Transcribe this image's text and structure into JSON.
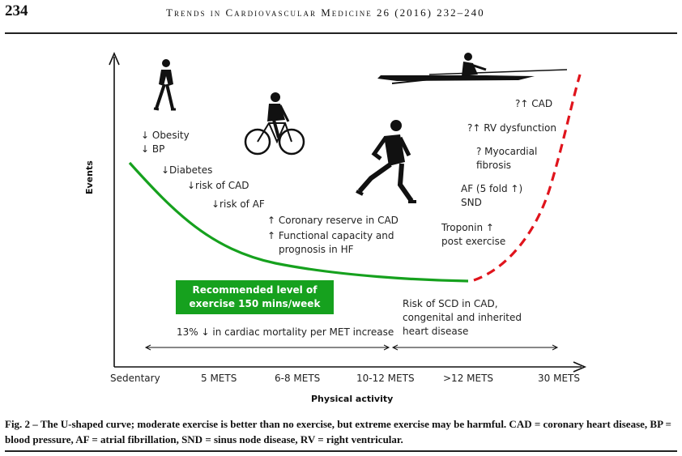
{
  "header": {
    "page_number": "234",
    "running_head": "Trends in Cardiovascular Medicine 26 (2016) 232–240"
  },
  "figure": {
    "y_axis_label": "Events",
    "x_axis_label": "Physical activity",
    "x_ticks": [
      "Sedentary",
      "5 METS",
      "6-8 METS",
      "10-12 METS",
      ">12 METS",
      "30 METS"
    ],
    "annotations": {
      "obesity": "↓ Obesity",
      "bp": "↓ BP",
      "diabetes": "↓Diabetes",
      "risk_cad": "↓risk of CAD",
      "risk_af": "↓risk of AF",
      "coronary_reserve": "↑ Coronary reserve in CAD",
      "functional_1": "↑ Functional capacity and",
      "functional_2": "prognosis in HF",
      "cad": "?↑ CAD",
      "rv_dysfunction": "?↑ RV dysfunction",
      "myocardial_1": "? Myocardial",
      "myocardial_2": "fibrosis",
      "af_1": "AF (5 fold ↑)",
      "af_2": "SND",
      "troponin_1": "Troponin ↑",
      "troponin_2": "post exercise",
      "scd_1": "Risk of SCD in CAD,",
      "scd_2": "congenital and inherited",
      "scd_3": "heart disease",
      "mortality": "13% ↓ in cardiac mortality per MET increase"
    },
    "recommended_box": {
      "line1": "Recommended level of",
      "line2": "exercise 150 mins/week",
      "color": "#16a11e"
    },
    "curve_colors": {
      "beneficial": "#16a11e",
      "harmful": "#e0141c"
    },
    "icons": [
      "walking-person-icon",
      "cyclist-icon",
      "runner-icon",
      "rower-icon"
    ]
  },
  "caption": {
    "text": "Fig. 2 – The U-shaped curve; moderate exercise is better than no exercise, but extreme exercise may be harmful. CAD = coronary heart disease, BP = blood pressure, AF = atrial fibrillation, SND = sinus node disease, RV = right ventricular."
  }
}
